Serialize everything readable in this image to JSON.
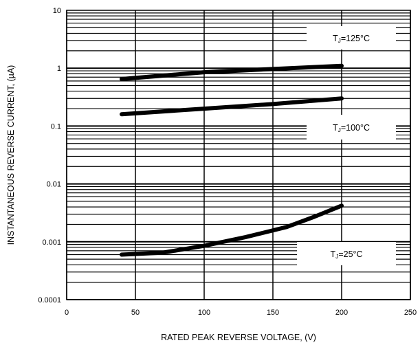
{
  "chart_data": {
    "type": "line",
    "title": "",
    "xlabel": "RATED PEAK REVERSE VOLTAGE, (V)",
    "ylabel": "INSTANTANEOUS REVERSE CURRENT, (µA)",
    "x_scale": "linear",
    "y_scale": "log",
    "xlim": [
      0,
      250
    ],
    "ylim": [
      0.0001,
      10
    ],
    "x_ticks": [
      0,
      50,
      100,
      150,
      200,
      250
    ],
    "x_tick_labels": [
      "0",
      "50",
      "100",
      "150",
      "200",
      "250"
    ],
    "y_ticks": [
      0.0001,
      0.001,
      0.01,
      0.1,
      1,
      10
    ],
    "y_tick_labels": [
      "0.0001",
      "0.001",
      "0.01",
      "0.1",
      "1",
      "10"
    ],
    "grid": true,
    "series": [
      {
        "name": "TJ=125°C",
        "label_main": "T",
        "label_sub": "J",
        "label_rest": "=125°C",
        "x": [
          40,
          100,
          200
        ],
        "y": [
          0.65,
          0.85,
          1.1
        ]
      },
      {
        "name": "TJ=100°C",
        "label_main": "T",
        "label_sub": "J",
        "label_rest": "=100°C",
        "x": [
          40,
          100,
          150,
          200
        ],
        "y": [
          0.16,
          0.2,
          0.24,
          0.3
        ]
      },
      {
        "name": "TJ=25°C",
        "label_main": "T",
        "label_sub": "J",
        "label_rest": "=25°C",
        "x": [
          40,
          70,
          100,
          130,
          160,
          180,
          200
        ],
        "y": [
          0.0006,
          0.00065,
          0.00085,
          0.0012,
          0.0018,
          0.0027,
          0.0042
        ]
      }
    ]
  },
  "colors": {
    "line": "#000000",
    "grid": "#000000",
    "background": "#ffffff"
  }
}
